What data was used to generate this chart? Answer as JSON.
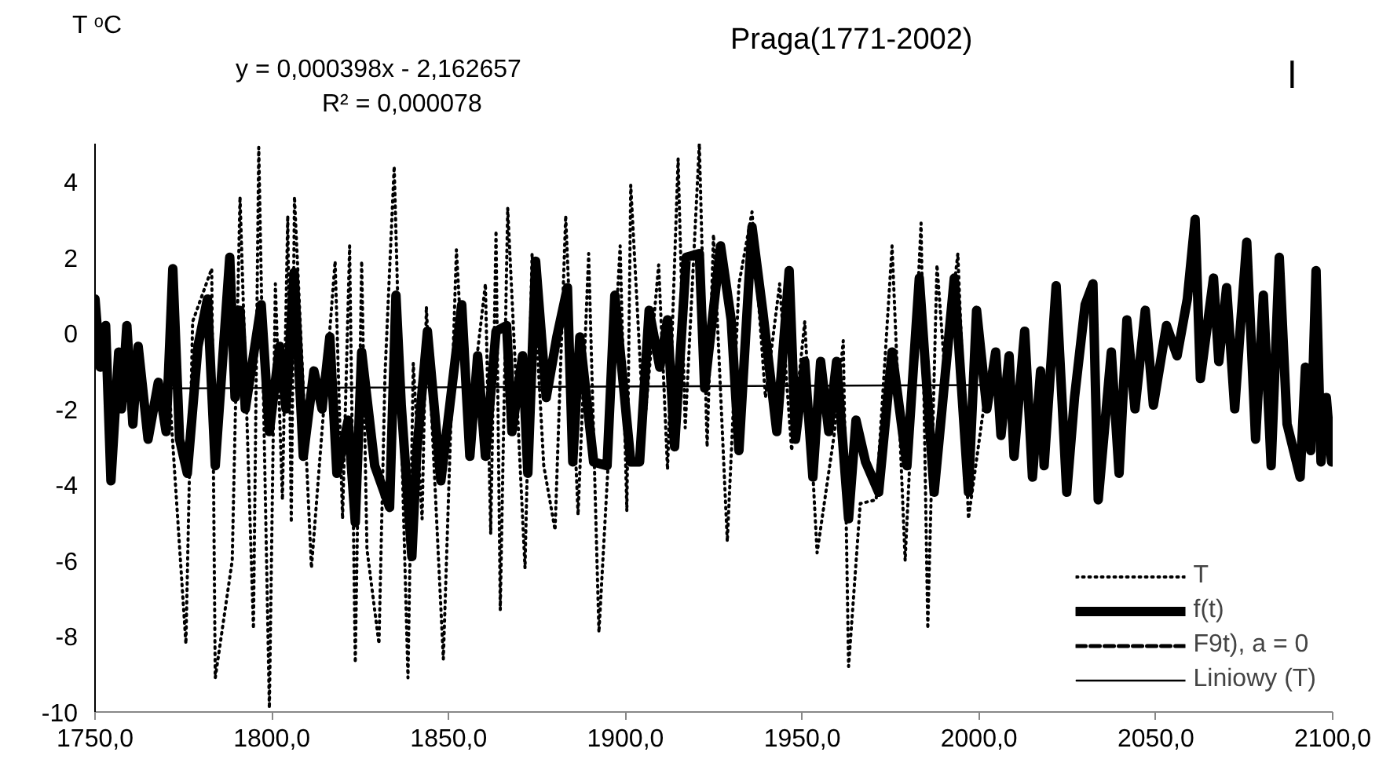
{
  "chart_data": {
    "type": "line",
    "title": "Praga(1771-2002)",
    "ylabel": "T ᵒC",
    "annotations": [
      "y = 0,000398x - 2,162657",
      "R² = 0,000078",
      "l"
    ],
    "xlim": [
      1750,
      2100
    ],
    "ylim": [
      -10,
      5
    ],
    "xticks": [
      {
        "value": 1750,
        "label": "1750,0"
      },
      {
        "value": 1800,
        "label": "1800,0"
      },
      {
        "value": 1850,
        "label": "1850,0"
      },
      {
        "value": 1900,
        "label": "1900,0"
      },
      {
        "value": 1950,
        "label": "1950,0"
      },
      {
        "value": 2000,
        "label": "2000,0"
      },
      {
        "value": 2050,
        "label": "2050,0"
      },
      {
        "value": 2100,
        "label": "2100,0"
      }
    ],
    "yticks": [
      -10,
      -8,
      -6,
      -4,
      -2,
      0,
      2,
      4
    ],
    "grid": false,
    "legend": "bottom right",
    "marker": "none",
    "series": [
      {
        "name": "T",
        "color": "#000000",
        "line_style": "dotted",
        "x": [
          1771,
          1775.7,
          1777.6,
          1783,
          1784,
          1788.8,
          1791,
          1794.8,
          1796.3,
          1799.3,
          1801,
          1803,
          1804.5,
          1805.5,
          1806.4,
          1811.2,
          1817.9,
          1820,
          1822,
          1823.6,
          1825.4,
          1826.9,
          1830.3,
          1832,
          1834.6,
          1838.5,
          1840,
          1842.5,
          1843.7,
          1848.5,
          1852.2,
          1855.2,
          1860.4,
          1861.9,
          1863.4,
          1864.6,
          1866.7,
          1871.6,
          1873.6,
          1876.9,
          1880.1,
          1883.1,
          1886.6,
          1889.6,
          1892.5,
          1898.5,
          1900.4,
          1901.5,
          1905.2,
          1909.4,
          1911.9,
          1914.9,
          1916.9,
          1920.9,
          1923.1,
          1924.9,
          1928.8,
          1932.1,
          1935.8,
          1939.6,
          1943.6,
          1947,
          1950.7,
          1954.2,
          1959,
          1961.6,
          1963.1,
          1966.4,
          1970.9,
          1975.4,
          1979.1,
          1983.6,
          1985.5,
          1988.1,
          1990.3,
          1994,
          1997,
          2002
        ],
        "values": [
          -1.5,
          -8.2,
          0.3,
          1.7,
          -9.1,
          -6.0,
          3.6,
          -7.8,
          4.9,
          -9.9,
          1.3,
          -4.4,
          3.1,
          -5.0,
          3.6,
          -6.2,
          1.9,
          -4.9,
          2.3,
          -8.7,
          1.9,
          -5.7,
          -8.2,
          -1.1,
          4.4,
          -9.1,
          -0.8,
          -4.9,
          0.7,
          -8.6,
          2.2,
          -2.9,
          1.3,
          -5.3,
          2.7,
          -7.3,
          3.3,
          -6.2,
          2.1,
          -3.5,
          -5.2,
          3.1,
          -4.8,
          2.1,
          -7.9,
          2.3,
          -4.7,
          3.9,
          -2.6,
          1.8,
          -3.6,
          4.6,
          -2.5,
          5.0,
          -3.0,
          2.6,
          -5.5,
          1.3,
          3.2,
          -1.7,
          1.3,
          -3.1,
          0.3,
          -5.8,
          -2.7,
          -0.2,
          -8.8,
          -4.5,
          -4.4,
          2.3,
          -6.0,
          2.9,
          -7.8,
          1.8,
          -1.0,
          2.1,
          -4.9,
          -1.5
        ]
      },
      {
        "name": "f(t)",
        "color": "#000000",
        "line_style": "solid",
        "x": [
          1750,
          1751.5,
          1753,
          1754.5,
          1756.7,
          1757.5,
          1759,
          1760.7,
          1762.2,
          1765,
          1767.9,
          1770.1,
          1772,
          1773.9,
          1776.1,
          1779.1,
          1781.8,
          1784,
          1788.1,
          1789.6,
          1791,
          1792.5,
          1797,
          1799.3,
          1802.2,
          1804,
          1806.3,
          1808.9,
          1811.9,
          1814.2,
          1816.4,
          1818.4,
          1821.6,
          1823.6,
          1825.4,
          1829.1,
          1833.3,
          1835.1,
          1836.6,
          1839.6,
          1841,
          1844,
          1847.8,
          1853.7,
          1856,
          1858.2,
          1860.4,
          1863.4,
          1866.4,
          1867.9,
          1870.9,
          1872.4,
          1874.6,
          1877.6,
          1880.6,
          1883.6,
          1885.1,
          1887.1,
          1891,
          1894.8,
          1897,
          1901.5,
          1904,
          1906.7,
          1909.7,
          1911.9,
          1913.9,
          1917.2,
          1920.9,
          1922.4,
          1926.9,
          1929.9,
          1932.1,
          1935.8,
          1938.8,
          1942.8,
          1946.3,
          1948.1,
          1950.7,
          1953,
          1955.2,
          1957.5,
          1959.7,
          1963.1,
          1965.2,
          1967.9,
          1971.6,
          1975.4,
          1979.6,
          1983.1,
          1987.3,
          1993,
          1997,
          1999.3,
          2002.2,
          2004.7,
          2006.2,
          2008.5,
          2009.9,
          2012.9,
          2015.1,
          2017.4,
          2018.4,
          2021.8,
          2024.8,
          2027,
          2030,
          2032.2,
          2033.7,
          2037.4,
          2039.6,
          2041.8,
          2044.1,
          2047,
          2049.3,
          2053,
          2056,
          2058.9,
          2061.1,
          2062.6,
          2066.3,
          2067.8,
          2070,
          2072.3,
          2073.7,
          2075.7,
          2078.2,
          2080.4,
          2082.6,
          2084.9,
          2087.1,
          2090.8,
          2092.3,
          2093.8,
          2095.3,
          2096.7,
          2098.2,
          2099.7
        ],
        "values": [
          0.9,
          -0.9,
          0.2,
          -3.9,
          -0.5,
          -2.0,
          0.2,
          -2.4,
          -0.35,
          -2.8,
          -1.3,
          -2.6,
          1.7,
          -2.8,
          -3.7,
          -0.35,
          0.9,
          -3.5,
          2.0,
          -1.7,
          0.6,
          -2.0,
          0.75,
          -2.6,
          -0.35,
          -2.0,
          1.6,
          -3.25,
          -1.0,
          -2.0,
          -0.1,
          -3.7,
          -2.3,
          -5.0,
          -0.5,
          -3.5,
          -4.6,
          1.0,
          -1.9,
          -5.9,
          -3.1,
          0.05,
          -3.9,
          0.75,
          -3.25,
          -0.6,
          -3.25,
          0.05,
          0.2,
          -2.6,
          -0.6,
          -3.7,
          1.9,
          -1.7,
          -0.1,
          1.2,
          -3.4,
          -0.1,
          -3.4,
          -3.5,
          1.0,
          -3.4,
          -3.4,
          0.6,
          -0.9,
          0.35,
          -3.0,
          2.0,
          2.1,
          -1.45,
          2.3,
          0.35,
          -3.1,
          2.8,
          0.6,
          -2.6,
          1.65,
          -2.8,
          -0.75,
          -3.8,
          -0.75,
          -2.6,
          -0.75,
          -4.9,
          -2.3,
          -3.4,
          -4.2,
          -0.5,
          -3.5,
          1.45,
          -4.2,
          1.45,
          -4.2,
          0.6,
          -2.0,
          -0.5,
          -2.7,
          -0.6,
          -3.25,
          0.05,
          -3.8,
          -1.0,
          -3.5,
          1.25,
          -4.2,
          -1.7,
          0.75,
          1.3,
          -4.4,
          -0.5,
          -3.7,
          0.35,
          -2.0,
          0.6,
          -1.9,
          0.2,
          -0.6,
          0.9,
          3.0,
          -1.2,
          1.45,
          -0.75,
          1.2,
          -2.0,
          -0.1,
          2.4,
          -2.8,
          1.0,
          -3.5,
          2.0,
          -2.4,
          -3.8,
          -0.9,
          -3.1,
          1.65,
          -3.4,
          -1.7,
          -3.4
        ]
      },
      {
        "name": "F9t), a = 0",
        "color": "#000000",
        "line_style": "dashed"
      },
      {
        "name": "Liniowy (T)",
        "color": "#000000",
        "line_style": "solid",
        "x": [
          1771,
          2002
        ],
        "values": [
          -1.46,
          -1.37
        ]
      }
    ]
  }
}
